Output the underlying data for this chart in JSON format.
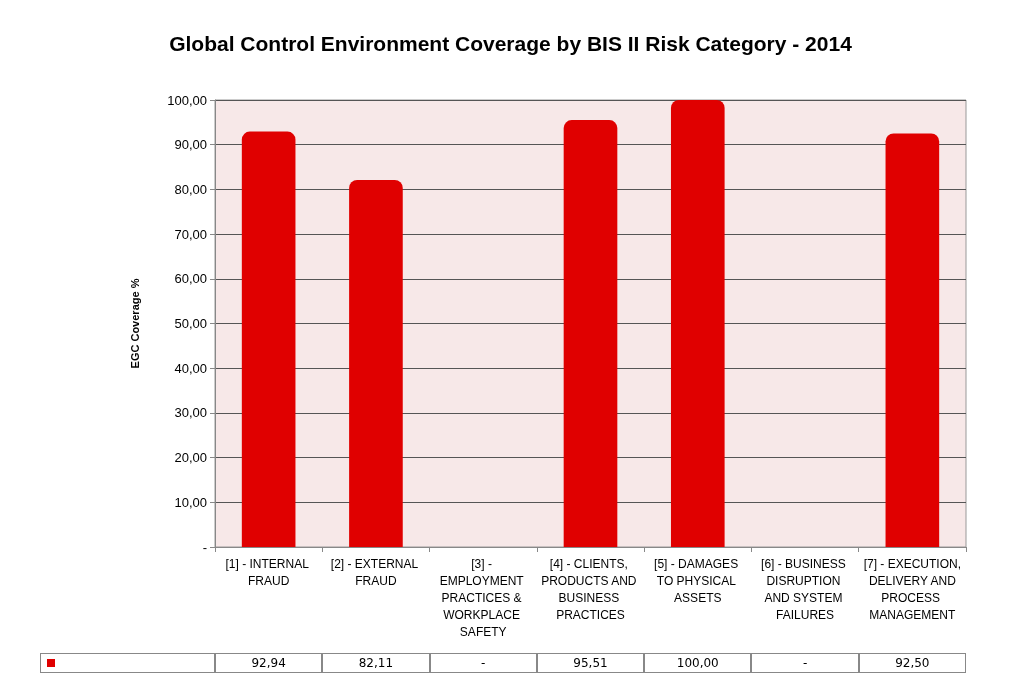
{
  "chart_data": {
    "type": "bar",
    "title": "Global Control Environment Coverage by BIS II Risk Category - 2014",
    "ylabel": "EGC Coverage %",
    "categories": [
      "[1] - INTERNAL FRAUD",
      "[2] - EXTERNAL FRAUD",
      "[3] - EMPLOYMENT PRACTICES & WORKPLACE SAFETY",
      "[4] - CLIENTS, PRODUCTS AND BUSINESS PRACTICES",
      "[5] - DAMAGES TO PHYSICAL ASSETS",
      "[6] - BUSINESS DISRUPTION AND SYSTEM FAILURES",
      "[7] - EXECUTION, DELIVERY AND PROCESS MANAGEMENT"
    ],
    "values": [
      92.94,
      82.11,
      0,
      95.51,
      100.0,
      0,
      92.5
    ],
    "value_labels": [
      "92,94",
      "82,11",
      "-",
      "95,51",
      "100,00",
      "-",
      "92,50"
    ],
    "color": "#e00000",
    "ylim": [
      0,
      100
    ],
    "yticks": [
      {
        "value": 0,
        "label": "-"
      },
      {
        "value": 10,
        "label": "10,00"
      },
      {
        "value": 20,
        "label": "20,00"
      },
      {
        "value": 30,
        "label": "30,00"
      },
      {
        "value": 40,
        "label": "40,00"
      },
      {
        "value": 50,
        "label": "50,00"
      },
      {
        "value": 60,
        "label": "60,00"
      },
      {
        "value": 70,
        "label": "70,00"
      },
      {
        "value": 80,
        "label": "80,00"
      },
      {
        "value": 90,
        "label": "90,00"
      },
      {
        "value": 100,
        "label": "100,00"
      }
    ],
    "grid": true
  }
}
